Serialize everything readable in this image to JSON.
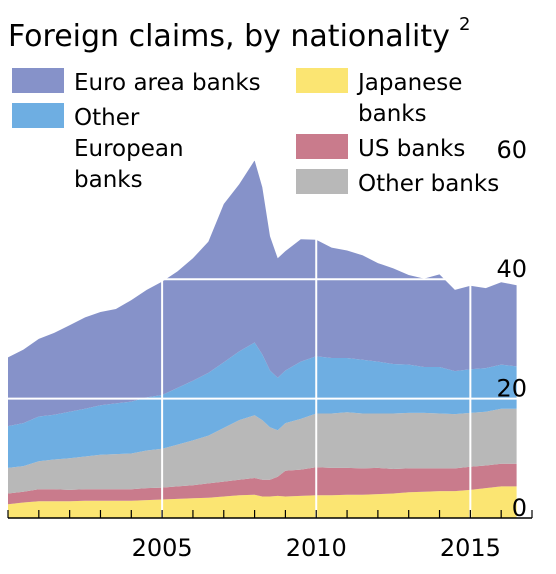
{
  "chart_data": {
    "type": "area",
    "stacked": true,
    "title": "Foreign claims, by nationality",
    "title_superscript": "2",
    "xlabel": "",
    "ylabel": "",
    "xlim": [
      2000.0,
      2017.0
    ],
    "ylim": [
      0,
      67
    ],
    "x_ticks": [
      "2005",
      "2010",
      "2015"
    ],
    "y_ticks": [
      "0",
      "20",
      "40",
      "60"
    ],
    "y_axis_side": "right",
    "grid": true,
    "legend_position": "top",
    "x": [
      2000.0,
      2000.5,
      2001.0,
      2001.5,
      2002.0,
      2002.5,
      2003.0,
      2003.5,
      2004.0,
      2004.5,
      2005.0,
      2005.5,
      2006.0,
      2006.5,
      2007.0,
      2007.5,
      2008.0,
      2008.25,
      2008.5,
      2008.75,
      2009.0,
      2009.5,
      2010.0,
      2010.5,
      2011.0,
      2011.5,
      2012.0,
      2012.5,
      2013.0,
      2013.5,
      2014.0,
      2014.5,
      2015.0,
      2015.5,
      2016.0,
      2016.5
    ],
    "series": [
      {
        "name": "Japanese banks",
        "color": "#fbe572",
        "values": [
          2.3,
          2.6,
          2.8,
          2.8,
          2.8,
          2.9,
          2.9,
          2.9,
          2.9,
          3.0,
          3.1,
          3.2,
          3.3,
          3.4,
          3.6,
          3.8,
          3.9,
          3.6,
          3.6,
          3.7,
          3.6,
          3.7,
          3.8,
          3.8,
          3.9,
          3.9,
          4.0,
          4.1,
          4.3,
          4.4,
          4.5,
          4.5,
          4.7,
          5.0,
          5.3,
          5.3
        ]
      },
      {
        "name": "US banks",
        "color": "#c97b8c",
        "values": [
          1.8,
          1.8,
          2.0,
          2.0,
          1.9,
          1.9,
          1.9,
          1.9,
          1.9,
          2.0,
          2.0,
          2.1,
          2.2,
          2.4,
          2.5,
          2.6,
          2.8,
          2.8,
          2.8,
          3.2,
          4.3,
          4.4,
          4.7,
          4.6,
          4.5,
          4.4,
          4.4,
          4.1,
          4.0,
          3.9,
          3.8,
          3.8,
          3.9,
          3.8,
          3.8,
          3.8
        ]
      },
      {
        "name": "Other banks",
        "color": "#b8b8b8",
        "values": [
          4.3,
          4.3,
          4.7,
          5.0,
          5.3,
          5.5,
          5.8,
          5.9,
          6.0,
          6.3,
          6.5,
          7.0,
          7.5,
          8.0,
          9.0,
          10.0,
          10.5,
          10.0,
          8.8,
          7.8,
          8.0,
          8.5,
          9.0,
          9.1,
          9.3,
          9.2,
          9.1,
          9.3,
          9.3,
          9.3,
          9.2,
          9.1,
          9.0,
          9.0,
          9.2,
          9.2
        ]
      },
      {
        "name": "Other European banks",
        "color": "#6eaee2",
        "values": [
          7.0,
          7.2,
          7.5,
          7.5,
          7.8,
          8.0,
          8.3,
          8.5,
          8.7,
          8.9,
          9.0,
          9.5,
          10.0,
          10.5,
          11.0,
          11.5,
          12.2,
          11.0,
          9.5,
          8.8,
          8.8,
          9.6,
          9.6,
          9.3,
          9.1,
          9.0,
          8.7,
          8.3,
          8.1,
          7.7,
          7.8,
          7.2,
          7.3,
          7.3,
          7.4,
          7.1
        ]
      },
      {
        "name": "Euro area banks",
        "color": "#8692c9",
        "values": [
          11.5,
          12.3,
          13.0,
          13.7,
          14.5,
          15.3,
          15.6,
          15.8,
          17.0,
          18.0,
          19.0,
          19.5,
          20.5,
          22.0,
          26.5,
          28.0,
          30.5,
          28.0,
          22.5,
          20.0,
          20.0,
          20.5,
          19.5,
          18.5,
          18.0,
          17.5,
          16.5,
          16.0,
          15.0,
          14.8,
          15.5,
          13.6,
          14.0,
          13.4,
          13.8,
          13.6
        ]
      }
    ],
    "legend_order": [
      "Euro area banks",
      "Japanese banks",
      "Other European banks",
      "US banks",
      "Other banks"
    ]
  }
}
